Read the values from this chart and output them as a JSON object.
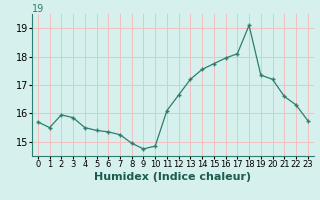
{
  "x": [
    0,
    1,
    2,
    3,
    4,
    5,
    6,
    7,
    8,
    9,
    10,
    11,
    12,
    13,
    14,
    15,
    16,
    17,
    18,
    19,
    20,
    21,
    22,
    23
  ],
  "y": [
    15.7,
    15.5,
    15.95,
    15.85,
    15.5,
    15.4,
    15.35,
    15.25,
    14.95,
    14.75,
    14.85,
    16.1,
    16.65,
    17.2,
    17.55,
    17.75,
    17.95,
    18.1,
    19.1,
    17.35,
    17.2,
    16.6,
    16.3,
    15.75
  ],
  "line_color": "#2e7d6e",
  "marker": "+",
  "bg_color": "#d6f0ed",
  "grid_color_major": "#f0c0c0",
  "grid_color_minor": "#f0c0c0",
  "xlabel": "Humidex (Indice chaleur)",
  "ylabel_ticks": [
    15,
    16,
    17,
    18,
    19
  ],
  "ylim": [
    14.5,
    19.5
  ],
  "xlim": [
    -0.5,
    23.5
  ],
  "xlabel_fontsize": 8,
  "tick_fontsize": 7,
  "title": "19",
  "title_fontsize": 7
}
